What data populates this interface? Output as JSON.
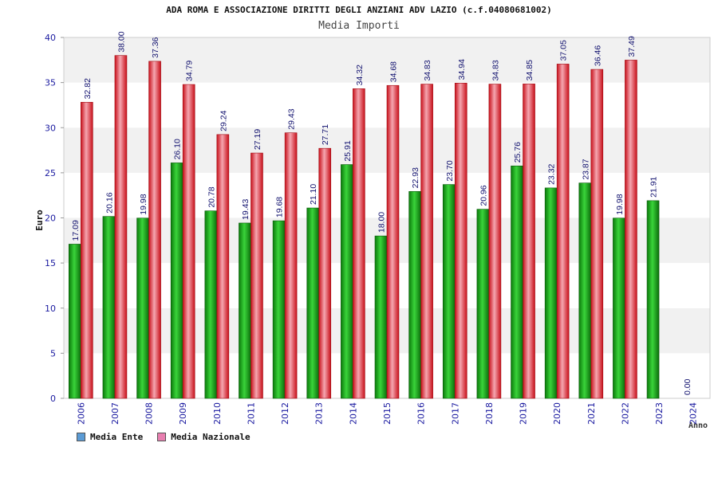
{
  "chart_data": {
    "type": "bar",
    "title": "ADA ROMA E ASSOCIAZIONE DIRITTI DEGLI ANZIANI ADV LAZIO (c.f.04080681002)",
    "subtitle": "Media Importi",
    "xlabel": "Anno",
    "ylabel": "Euro",
    "ylim": [
      0,
      40
    ],
    "yticks": [
      0,
      5,
      10,
      15,
      20,
      25,
      30,
      35,
      40
    ],
    "grid": "horizontal bands",
    "legend_position": "bottom-left",
    "categories": [
      "2006",
      "2007",
      "2008",
      "2009",
      "2010",
      "2011",
      "2012",
      "2013",
      "2014",
      "2015",
      "2016",
      "2017",
      "2018",
      "2019",
      "2020",
      "2021",
      "2022",
      "2023",
      "2024"
    ],
    "series": [
      {
        "name": "Media Ente",
        "color": "#1aa31a",
        "legend_color": "#5b9bd5",
        "values": [
          17.09,
          20.16,
          19.98,
          26.1,
          20.78,
          19.43,
          19.68,
          21.1,
          25.91,
          18.0,
          22.93,
          23.7,
          20.96,
          25.76,
          23.32,
          23.87,
          19.98,
          21.91,
          0.0
        ],
        "labels": [
          "17.09",
          "20.16",
          "19.98",
          "26.10",
          "20.78",
          "19.43",
          "19.68",
          "21.10",
          "25.91",
          "18.00",
          "22.93",
          "23.70",
          "20.96",
          "25.76",
          "23.32",
          "23.87",
          "19.98",
          "21.91",
          "0.00"
        ]
      },
      {
        "name": "Media Nazionale",
        "color": "#e8202a",
        "legend_color": "#e87fb0",
        "values": [
          32.82,
          38.0,
          37.36,
          34.79,
          29.24,
          27.19,
          29.43,
          27.71,
          34.32,
          34.68,
          34.83,
          34.94,
          34.83,
          34.85,
          37.05,
          36.46,
          37.49,
          null,
          null
        ],
        "labels": [
          "32.82",
          "38.00",
          "37.36",
          "34.79",
          "29.24",
          "27.19",
          "29.43",
          "27.71",
          "34.32",
          "34.68",
          "34.83",
          "34.94",
          "34.83",
          "34.85",
          "37.05",
          "36.46",
          "37.49",
          null,
          null
        ]
      }
    ]
  }
}
